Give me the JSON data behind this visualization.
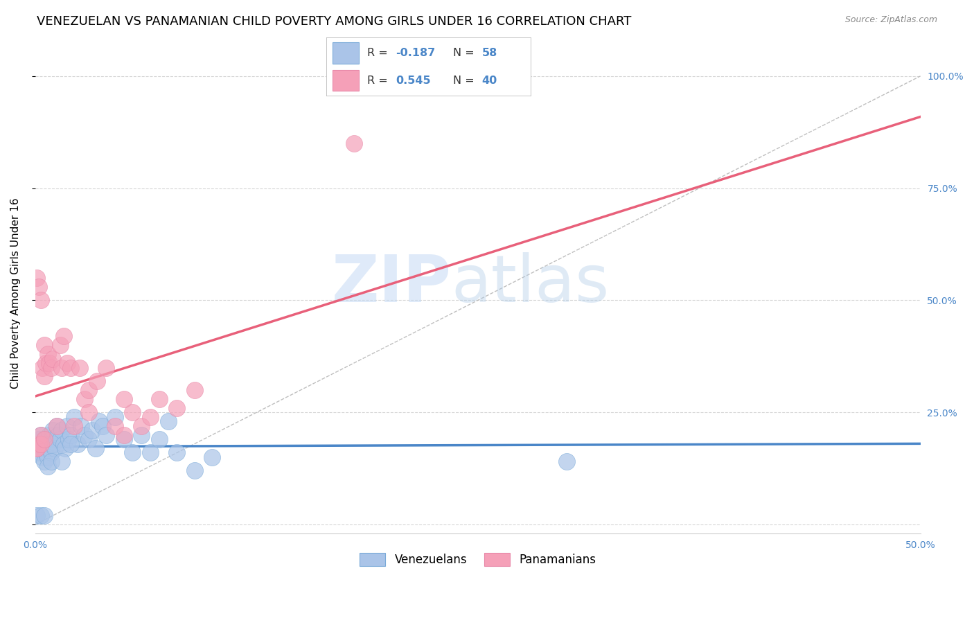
{
  "title": "VENEZUELAN VS PANAMANIAN CHILD POVERTY AMONG GIRLS UNDER 16 CORRELATION CHART",
  "source": "Source: ZipAtlas.com",
  "ylabel": "Child Poverty Among Girls Under 16",
  "xlim": [
    0.0,
    0.5
  ],
  "ylim": [
    -0.02,
    1.05
  ],
  "venezuelan_color": "#aac4e8",
  "panamanian_color": "#f5a0b8",
  "trendline_blue": "#4a86c8",
  "trendline_pink": "#e8607a",
  "R_venezuelan": -0.187,
  "N_venezuelan": 58,
  "R_panamanian": 0.545,
  "N_panamanian": 40,
  "venezuelan_x": [
    0.001,
    0.001,
    0.002,
    0.002,
    0.003,
    0.003,
    0.004,
    0.004,
    0.005,
    0.005,
    0.006,
    0.006,
    0.007,
    0.007,
    0.008,
    0.008,
    0.009,
    0.009,
    0.01,
    0.01,
    0.011,
    0.012,
    0.013,
    0.014,
    0.015,
    0.016,
    0.017,
    0.018,
    0.019,
    0.02,
    0.022,
    0.024,
    0.026,
    0.028,
    0.03,
    0.032,
    0.034,
    0.036,
    0.038,
    0.04,
    0.045,
    0.05,
    0.055,
    0.06,
    0.065,
    0.07,
    0.075,
    0.08,
    0.09,
    0.1,
    0.001,
    0.003,
    0.005,
    0.007,
    0.009,
    0.015,
    0.02,
    0.3
  ],
  "venezuelan_y": [
    0.18,
    0.16,
    0.19,
    0.17,
    0.2,
    0.16,
    0.18,
    0.15,
    0.17,
    0.14,
    0.19,
    0.16,
    0.18,
    0.15,
    0.2,
    0.17,
    0.19,
    0.16,
    0.21,
    0.18,
    0.17,
    0.22,
    0.2,
    0.19,
    0.21,
    0.18,
    0.17,
    0.22,
    0.19,
    0.2,
    0.24,
    0.18,
    0.22,
    0.2,
    0.19,
    0.21,
    0.17,
    0.23,
    0.22,
    0.2,
    0.24,
    0.19,
    0.16,
    0.2,
    0.16,
    0.19,
    0.23,
    0.16,
    0.12,
    0.15,
    0.02,
    0.02,
    0.02,
    0.13,
    0.14,
    0.14,
    0.18,
    0.14
  ],
  "panamanian_x": [
    0.001,
    0.001,
    0.002,
    0.002,
    0.003,
    0.003,
    0.004,
    0.005,
    0.005,
    0.006,
    0.007,
    0.008,
    0.009,
    0.01,
    0.012,
    0.014,
    0.015,
    0.016,
    0.018,
    0.02,
    0.022,
    0.025,
    0.028,
    0.03,
    0.035,
    0.04,
    0.045,
    0.05,
    0.055,
    0.06,
    0.065,
    0.07,
    0.08,
    0.09,
    0.001,
    0.003,
    0.005,
    0.18,
    0.05,
    0.03
  ],
  "panamanian_y": [
    0.17,
    0.55,
    0.18,
    0.53,
    0.2,
    0.5,
    0.35,
    0.33,
    0.4,
    0.36,
    0.38,
    0.36,
    0.35,
    0.37,
    0.22,
    0.4,
    0.35,
    0.42,
    0.36,
    0.35,
    0.22,
    0.35,
    0.28,
    0.3,
    0.32,
    0.35,
    0.22,
    0.2,
    0.25,
    0.22,
    0.24,
    0.28,
    0.26,
    0.3,
    0.17,
    0.18,
    0.19,
    0.85,
    0.28,
    0.25
  ],
  "watermark_zip": "ZIP",
  "watermark_atlas": "atlas",
  "background_color": "#ffffff",
  "grid_color": "#cccccc",
  "title_fontsize": 13,
  "label_fontsize": 11,
  "tick_fontsize": 10
}
